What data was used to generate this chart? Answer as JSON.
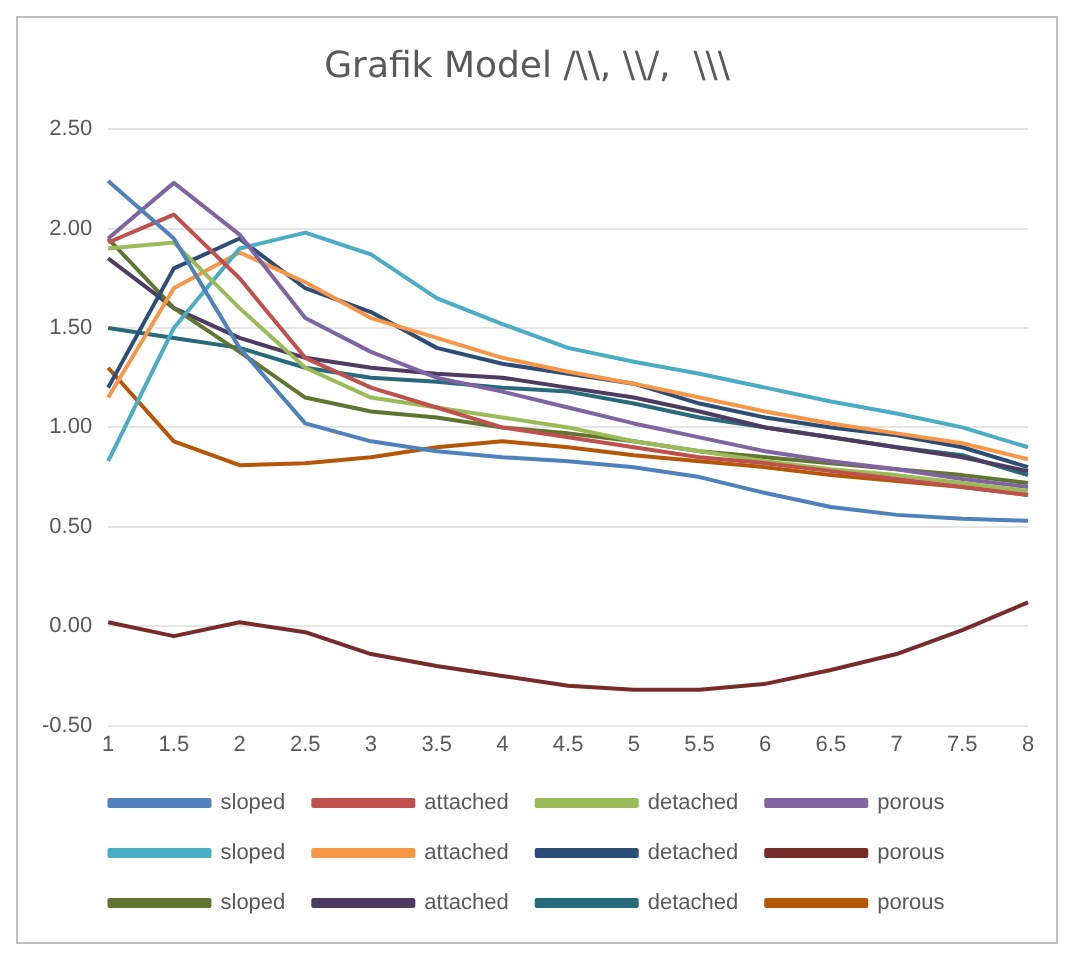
{
  "chart_data": {
    "type": "line",
    "title": "Grafik Model /\\\\, \\\\/,  \\\\\\",
    "categories": [
      "1",
      "1.5",
      "2",
      "2.5",
      "3",
      "3.5",
      "4",
      "4.5",
      "5",
      "5.5",
      "6",
      "6.5",
      "7",
      "7.5",
      "8"
    ],
    "ylim": [
      -0.5,
      2.5
    ],
    "yticks": [
      {
        "value": -0.5,
        "label": "-0.50"
      },
      {
        "value": 0,
        "label": "0.00"
      },
      {
        "value": 0.5,
        "label": "0.50"
      },
      {
        "value": 1,
        "label": "1.00"
      },
      {
        "value": 1.5,
        "label": "1.50"
      },
      {
        "value": 2,
        "label": "2.00"
      },
      {
        "value": 2.5,
        "label": "2.50"
      }
    ],
    "grid": "y",
    "legend": "bottom",
    "marker": "none",
    "series": [
      {
        "name": "sloped",
        "color": "#4f81bd",
        "values": [
          2.24,
          1.95,
          1.4,
          1.02,
          0.93,
          0.88,
          0.85,
          0.83,
          0.8,
          0.75,
          0.67,
          0.6,
          0.56,
          0.54,
          0.53
        ]
      },
      {
        "name": "attached",
        "color": "#c0504d",
        "values": [
          1.93,
          2.07,
          1.75,
          1.35,
          1.2,
          1.1,
          1.0,
          0.95,
          0.9,
          0.85,
          0.82,
          0.78,
          0.74,
          0.7,
          0.66
        ]
      },
      {
        "name": "detached",
        "color": "#9bbb59",
        "values": [
          1.9,
          1.93,
          1.6,
          1.3,
          1.15,
          1.1,
          1.05,
          1.0,
          0.93,
          0.88,
          0.83,
          0.79,
          0.76,
          0.72,
          0.68
        ]
      },
      {
        "name": "porous",
        "color": "#8064a2",
        "values": [
          1.95,
          2.23,
          1.97,
          1.55,
          1.38,
          1.25,
          1.18,
          1.1,
          1.02,
          0.95,
          0.88,
          0.83,
          0.79,
          0.74,
          0.7
        ]
      },
      {
        "name": "sloped",
        "color": "#4bacc6",
        "values": [
          0.83,
          1.5,
          1.9,
          1.98,
          1.87,
          1.65,
          1.52,
          1.4,
          1.33,
          1.27,
          1.2,
          1.13,
          1.07,
          1.0,
          0.9
        ]
      },
      {
        "name": "attached",
        "color": "#f79646",
        "values": [
          1.15,
          1.7,
          1.88,
          1.73,
          1.55,
          1.45,
          1.35,
          1.28,
          1.22,
          1.15,
          1.08,
          1.02,
          0.97,
          0.92,
          0.84
        ]
      },
      {
        "name": "detached",
        "color": "#2c4d75",
        "values": [
          1.2,
          1.8,
          1.95,
          1.7,
          1.58,
          1.4,
          1.32,
          1.27,
          1.22,
          1.12,
          1.05,
          1.0,
          0.96,
          0.9,
          0.8
        ]
      },
      {
        "name": "porous",
        "color": "#772c2a",
        "values": [
          0.02,
          -0.05,
          0.02,
          -0.03,
          -0.14,
          -0.2,
          -0.25,
          -0.3,
          -0.32,
          -0.32,
          -0.29,
          -0.22,
          -0.14,
          -0.02,
          0.12
        ]
      },
      {
        "name": "sloped",
        "color": "#5f7530",
        "values": [
          1.95,
          1.6,
          1.38,
          1.15,
          1.08,
          1.05,
          1.0,
          0.97,
          0.93,
          0.88,
          0.85,
          0.82,
          0.79,
          0.76,
          0.72
        ]
      },
      {
        "name": "attached",
        "color": "#4d3b62",
        "values": [
          1.85,
          1.6,
          1.45,
          1.35,
          1.3,
          1.27,
          1.25,
          1.2,
          1.15,
          1.08,
          1.0,
          0.95,
          0.9,
          0.85,
          0.78
        ]
      },
      {
        "name": "detached",
        "color": "#276a7c",
        "values": [
          1.5,
          1.45,
          1.4,
          1.3,
          1.25,
          1.23,
          1.2,
          1.18,
          1.12,
          1.05,
          1.0,
          0.95,
          0.9,
          0.86,
          0.76
        ]
      },
      {
        "name": "porous",
        "color": "#b65708",
        "values": [
          1.3,
          0.93,
          0.81,
          0.82,
          0.85,
          0.9,
          0.93,
          0.9,
          0.86,
          0.83,
          0.8,
          0.76,
          0.73,
          0.7,
          0.66
        ]
      }
    ]
  }
}
